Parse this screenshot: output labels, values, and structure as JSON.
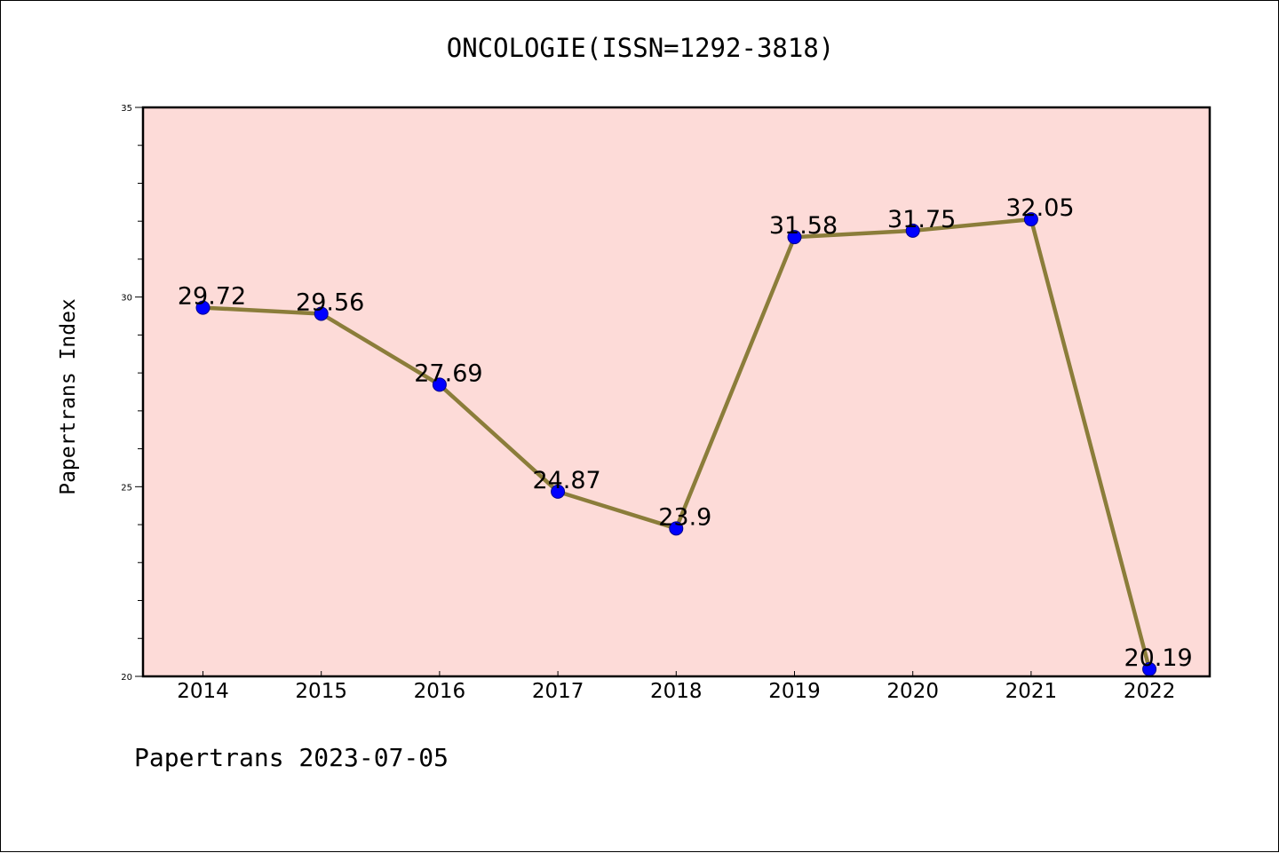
{
  "title": "ONCOLOGIE(ISSN=1292-3818)",
  "footer": "Papertrans 2023-07-05",
  "chart_data": {
    "type": "line",
    "title": "ONCOLOGIE(ISSN=1292-3818)",
    "xlabel": "",
    "ylabel": "Papertrans Index",
    "categories": [
      "2014",
      "2015",
      "2016",
      "2017",
      "2018",
      "2019",
      "2020",
      "2021",
      "2022"
    ],
    "series": [
      {
        "values": [
          29.72,
          29.56,
          27.69,
          24.87,
          23.9,
          31.58,
          31.75,
          32.05,
          20.19
        ]
      }
    ],
    "data_labels": [
      "29.72",
      "29.56",
      "27.69",
      "24.87",
      "23.9",
      "31.58",
      "31.75",
      "32.05",
      "20.19"
    ],
    "ylim": [
      20,
      35
    ],
    "yticks": [
      20,
      25,
      30,
      35
    ],
    "grid": false,
    "legend": "none",
    "colors": {
      "plot_background": "#fddbd8",
      "line": "#8b7d3a",
      "marker": "#0000ff"
    }
  }
}
